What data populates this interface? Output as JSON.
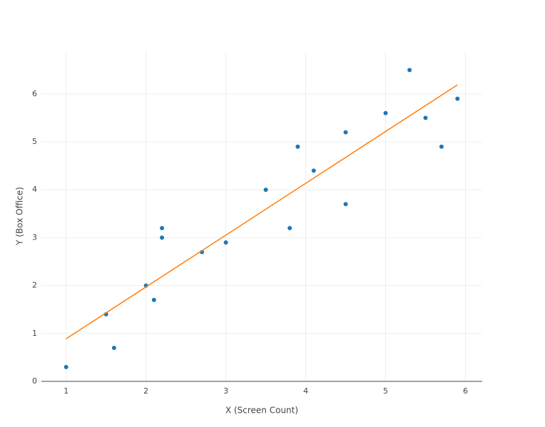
{
  "chart_data": {
    "type": "scatter",
    "xlabel": "X (Screen Count)",
    "ylabel": "Y (Box Office)",
    "xlim": [
      0.69,
      6.21
    ],
    "ylim": [
      0,
      6.89
    ],
    "xticks": [
      1,
      2,
      3,
      4,
      5,
      6
    ],
    "yticks": [
      0,
      1,
      2,
      3,
      4,
      5,
      6
    ],
    "grid": true,
    "series": [
      {
        "color": "#1f77b4",
        "mode": "markers",
        "x": [
          1,
          1.5,
          1.6,
          2,
          2.1,
          2.2,
          2.2,
          2.7,
          3,
          3.5,
          3.8,
          3.9,
          4.1,
          4.5,
          4.5,
          5,
          5.3,
          5.5,
          5.7,
          5.9
        ],
        "values": [
          0.3,
          1.4,
          0.7,
          2.0,
          1.7,
          3.2,
          3.0,
          2.7,
          2.9,
          4.0,
          3.2,
          4.9,
          4.4,
          5.2,
          3.7,
          5.6,
          6.5,
          5.5,
          4.9,
          5.9
        ]
      },
      {
        "color": "#ff7f0e",
        "mode": "line",
        "x": [
          1,
          5.9
        ],
        "values": [
          0.89,
          6.19
        ]
      }
    ]
  }
}
